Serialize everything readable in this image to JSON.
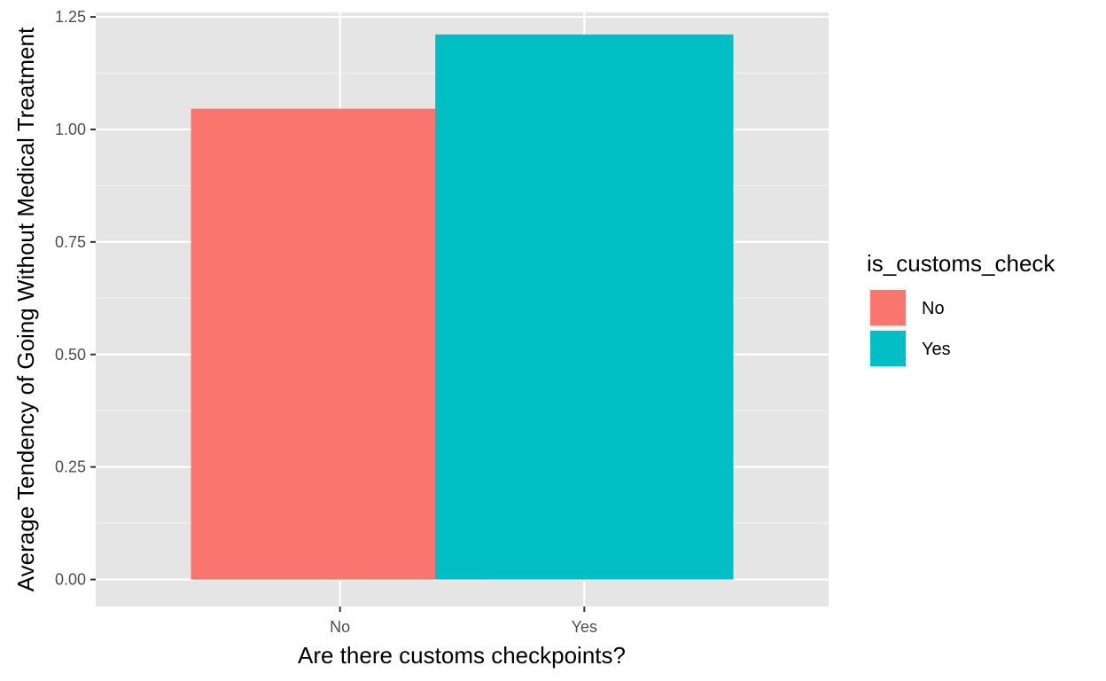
{
  "chart_data": {
    "type": "bar",
    "categories": [
      "No",
      "Yes"
    ],
    "values": [
      1.046,
      1.211
    ],
    "colors": [
      "#f8766d",
      "#00bfc4"
    ],
    "xlabel": "Are there customs checkpoints?",
    "ylabel": "Average Tendency of Going Without Medical Treatment",
    "ylim": [
      -0.06,
      1.26
    ],
    "yticks": [
      0.0,
      0.25,
      0.5,
      0.75,
      1.0,
      1.25
    ],
    "ytick_labels": [
      "0.00",
      "0.25",
      "0.50",
      "0.75",
      "1.00",
      "1.25"
    ],
    "grid": true,
    "panel_background": "#e5e5e5",
    "legend": {
      "title": "is_customs_check",
      "placement": "right",
      "entries": [
        {
          "label": "No",
          "color": "#f8766d"
        },
        {
          "label": "Yes",
          "color": "#00bfc4"
        }
      ]
    }
  }
}
